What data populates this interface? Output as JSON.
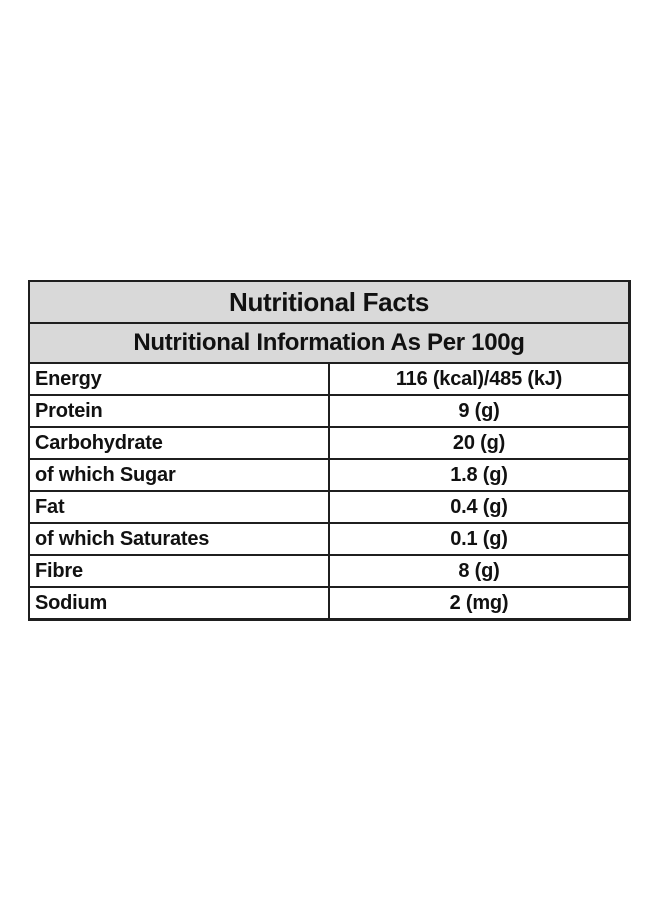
{
  "table": {
    "title": "Nutritional Facts",
    "subtitle": "Nutritional Information As Per 100g",
    "rows": [
      {
        "name": "Energy",
        "value": "116 (kcal)/485 (kJ)"
      },
      {
        "name": "Protein",
        "value": "9 (g)"
      },
      {
        "name": "Carbohydrate",
        "value": "20 (g)"
      },
      {
        "name": "of which Sugar",
        "value": "1.8 (g)"
      },
      {
        "name": "Fat",
        "value": "0.4 (g)"
      },
      {
        "name": "of which Saturates",
        "value": "0.1 (g)"
      },
      {
        "name": "Fibre",
        "value": "8 (g)"
      },
      {
        "name": "Sodium",
        "value": "2 (mg)"
      }
    ]
  },
  "colors": {
    "header_background": "#d9d9d9",
    "border": "#1f1f1f",
    "text": "#111111"
  }
}
